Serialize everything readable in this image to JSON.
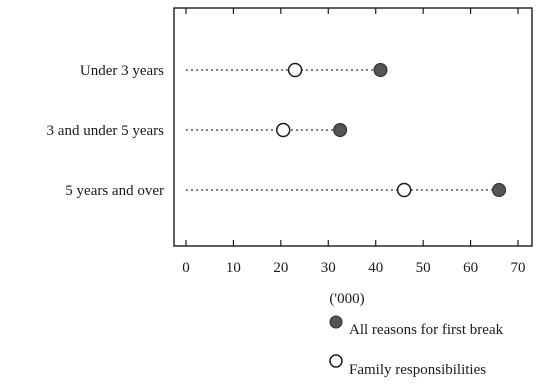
{
  "chart_data": {
    "type": "scatter",
    "subtype": "dot-plot",
    "title": "",
    "xlabel": "('000)",
    "ylabel": "",
    "xlim": [
      -2,
      73
    ],
    "xticks": [
      0,
      10,
      20,
      30,
      40,
      50,
      60,
      70
    ],
    "grid": false,
    "legend_position": "bottom-right",
    "categories": [
      "Under 3 years",
      "3 and under 5 years",
      "5 years and over"
    ],
    "series": [
      {
        "name": "All reasons for first break",
        "marker": "filled-circle",
        "color": "#555555",
        "values": [
          41,
          32.5,
          66
        ]
      },
      {
        "name": "Family responsibilities",
        "marker": "open-circle",
        "color": "#ffffff",
        "values": [
          23,
          20.5,
          46
        ]
      }
    ]
  }
}
